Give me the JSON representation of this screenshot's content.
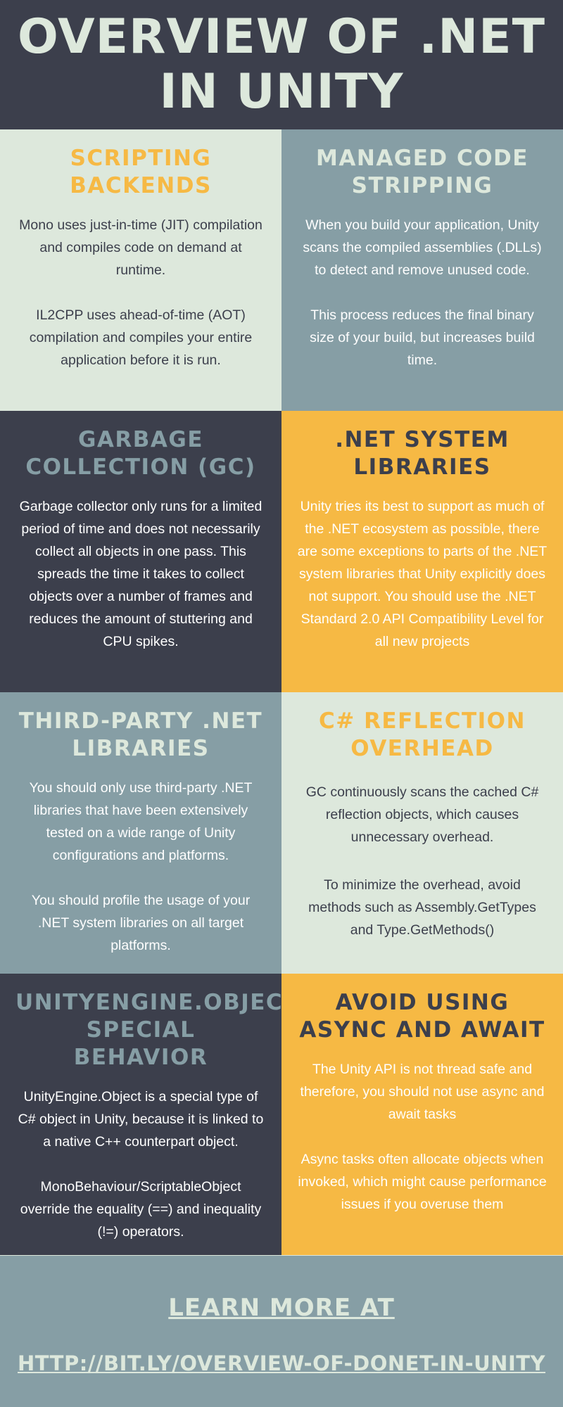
{
  "title": "OVERVIEW OF .NET IN UNITY",
  "sections": [
    {
      "heading": "SCRIPTING BACKENDS",
      "paragraphs": [
        "Mono uses just-in-time (JIT) compilation and compiles code on demand at runtime.",
        "IL2CPP uses ahead-of-time (AOT) compilation and compiles your entire application before it is run."
      ]
    },
    {
      "heading": "MANAGED CODE STRIPPING",
      "paragraphs": [
        "When you build your application, Unity scans the compiled assemblies (.DLLs) to detect and remove unused code.",
        "This process reduces the final binary size of your build, but increases build time."
      ]
    },
    {
      "heading": "GARBAGE COLLECTION (GC)",
      "paragraphs": [
        "Garbage collector only runs for a limited period of time and does not necessarily collect all objects in one pass. This spreads the time it takes to collect objects over a number of frames and reduces the amount of stuttering and CPU spikes."
      ]
    },
    {
      "heading": ".NET SYSTEM LIBRARIES",
      "paragraphs": [
        "Unity tries its best to support as much of the .NET ecosystem as possible, there are some exceptions to parts of the .NET system libraries that Unity explicitly does not support. You should use the .NET Standard 2.0 API Compatibility Level for all new projects"
      ]
    },
    {
      "heading": "THIRD-PARTY .NET LIBRARIES",
      "paragraphs": [
        "You should only use third-party .NET libraries that have been extensively tested on a wide range of Unity configurations and platforms.",
        "You should profile the usage of your .NET system libraries on all target platforms."
      ]
    },
    {
      "heading": "C# REFLECTION OVERHEAD",
      "paragraphs": [
        "GC continuously scans the cached C# reflection objects, which causes unnecessary overhead.",
        "To minimize the overhead, avoid methods such as Assembly.GetTypes and Type.GetMethods()"
      ]
    },
    {
      "heading": "UNITYENGINE.OBJECT SPECIAL BEHAVIOR",
      "paragraphs": [
        "UnityEngine.Object is a special type of C# object in Unity, because it is linked to a native C++ counterpart object.",
        "MonoBehaviour/ScriptableObject override the equality (==) and inequality (!=) operators."
      ]
    },
    {
      "heading": "AVOID USING ASYNC AND AWAIT",
      "paragraphs": [
        "The Unity API is not thread safe and therefore, you should not use async and await tasks",
        "Async tasks often allocate objects when invoked, which might cause performance issues if you overuse them"
      ]
    }
  ],
  "footer": {
    "line1": "LEARN MORE AT",
    "line2": "HTTP://BIT.LY/OVERVIEW-OF-DONET-IN-UNITY"
  },
  "colors": {
    "dark": "#3c3f4c",
    "mint": "#dde8dc",
    "slate": "#869ea5",
    "amber": "#f6b944"
  }
}
